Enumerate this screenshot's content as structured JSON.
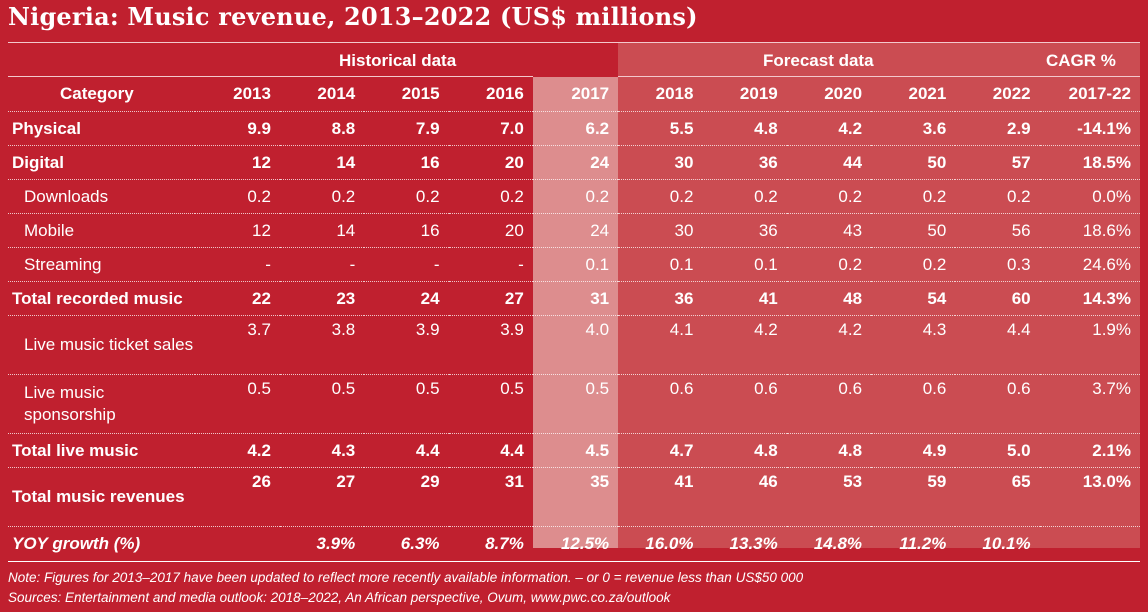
{
  "title": "Nigeria: Music revenue, 2013–2022 (US$ millions)",
  "header": {
    "historical_label": "Historical data",
    "forecast_label": "Forecast data",
    "cagr_label": "CAGR %",
    "category_label": "Category",
    "years": [
      "2013",
      "2014",
      "2015",
      "2016",
      "2017",
      "2018",
      "2019",
      "2020",
      "2021",
      "2022"
    ],
    "cagr_period": "2017-22"
  },
  "rows": [
    {
      "category": "Physical",
      "values": [
        "9.9",
        "8.8",
        "7.9",
        "7.0",
        "6.2",
        "5.5",
        "4.8",
        "4.2",
        "3.6",
        "2.9"
      ],
      "cagr": "-14.1%"
    },
    {
      "category": "Digital",
      "values": [
        "12",
        "14",
        "16",
        "20",
        "24",
        "30",
        "36",
        "44",
        "50",
        "57"
      ],
      "cagr": "18.5%"
    },
    {
      "category": "Downloads",
      "values": [
        "0.2",
        "0.2",
        "0.2",
        "0.2",
        "0.2",
        "0.2",
        "0.2",
        "0.2",
        "0.2",
        "0.2"
      ],
      "cagr": "0.0%"
    },
    {
      "category": "Mobile",
      "values": [
        "12",
        "14",
        "16",
        "20",
        "24",
        "30",
        "36",
        "43",
        "50",
        "56"
      ],
      "cagr": "18.6%"
    },
    {
      "category": "Streaming",
      "values": [
        "-",
        "-",
        "-",
        "-",
        "0.1",
        "0.1",
        "0.1",
        "0.2",
        "0.2",
        "0.3"
      ],
      "cagr": "24.6%"
    },
    {
      "category": "Total recorded music",
      "values": [
        "22",
        "23",
        "24",
        "27",
        "31",
        "36",
        "41",
        "48",
        "54",
        "60"
      ],
      "cagr": "14.3%"
    },
    {
      "category": "Live music ticket sales",
      "values": [
        "3.7",
        "3.8",
        "3.9",
        "3.9",
        "4.0",
        "4.1",
        "4.2",
        "4.2",
        "4.3",
        "4.4"
      ],
      "cagr": "1.9%"
    },
    {
      "category": "Live music sponsorship",
      "values": [
        "0.5",
        "0.5",
        "0.5",
        "0.5",
        "0.5",
        "0.6",
        "0.6",
        "0.6",
        "0.6",
        "0.6"
      ],
      "cagr": "3.7%"
    },
    {
      "category": "Total live music",
      "values": [
        "4.2",
        "4.3",
        "4.4",
        "4.4",
        "4.5",
        "4.7",
        "4.8",
        "4.8",
        "4.9",
        "5.0"
      ],
      "cagr": "2.1%"
    },
    {
      "category": "Total music revenues",
      "values": [
        "26",
        "27",
        "29",
        "31",
        "35",
        "41",
        "46",
        "53",
        "59",
        "65"
      ],
      "cagr": "13.0%"
    }
  ],
  "yoy": {
    "label": "YOY growth (%)",
    "values": [
      "",
      "3.9%",
      "6.3%",
      "8.7%",
      "12.5%",
      "16.0%",
      "13.3%",
      "14.8%",
      "11.2%",
      "10.1%"
    ],
    "cagr": ""
  },
  "note": "Note: Figures for 2013–2017 have been updated to reflect more recently available information. – or 0 = revenue less than US$50 000",
  "sources": "Sources: Entertainment and media outlook: 2018–2022, An African perspective, Ovum, www.pwc.co.za/outlook",
  "colors": {
    "background": "#c0202f",
    "forecast_shade": "#cb4c52",
    "highlight_2017": "#dd8d8e"
  }
}
